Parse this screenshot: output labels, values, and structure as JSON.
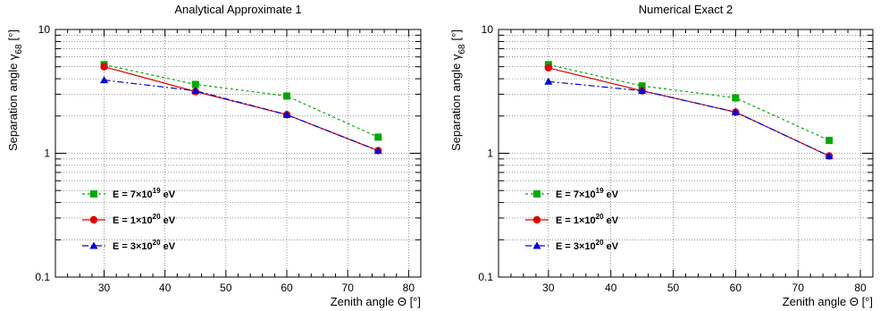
{
  "chart_data": [
    {
      "type": "line",
      "title": "Analytical Approximate 1",
      "xlabel": "Zenith angle Θ [°]",
      "ylabel": "Separation angle γ",
      "ylabel_sub": "68",
      "ylabel_unit": "[°]",
      "xlim": [
        22,
        82
      ],
      "ylim": [
        0.1,
        10
      ],
      "yscale": "log",
      "grid": true,
      "legend_position": "bottom-left",
      "x_ticks": [
        "30",
        "40",
        "50",
        "60",
        "70",
        "80"
      ],
      "y_ticks": [
        "0.1",
        "1",
        "10"
      ],
      "series": [
        {
          "name": "E = 7×10^19 eV",
          "name_base": "E = 7×10",
          "name_exp": "19",
          "name_tail": " eV",
          "color": "#00aa00",
          "marker": "square",
          "line": "dotted",
          "x": [
            30,
            45,
            60,
            75
          ],
          "y": [
            5.2,
            3.6,
            2.9,
            1.35
          ]
        },
        {
          "name": "E = 1×10^20 eV",
          "name_base": "E = 1×10",
          "name_exp": "20",
          "name_tail": " eV",
          "color": "#e00000",
          "marker": "circle",
          "line": "solid",
          "x": [
            30,
            45,
            60,
            75
          ],
          "y": [
            5.0,
            3.15,
            2.05,
            1.05
          ]
        },
        {
          "name": "E = 3×10^20 eV",
          "name_base": "E = 3×10",
          "name_exp": "20",
          "name_tail": " eV",
          "color": "#0000dd",
          "marker": "triangle",
          "line": "dashdot",
          "x": [
            30,
            45,
            60,
            75
          ],
          "y": [
            3.9,
            3.2,
            2.05,
            1.05
          ]
        }
      ]
    },
    {
      "type": "line",
      "title": "Numerical Exact 2",
      "xlabel": "Zenith angle Θ [°]",
      "ylabel": "Separation angle γ",
      "ylabel_sub": "68",
      "ylabel_unit": "[°]",
      "xlim": [
        22,
        82
      ],
      "ylim": [
        0.1,
        10
      ],
      "yscale": "log",
      "grid": true,
      "legend_position": "bottom-left",
      "x_ticks": [
        "30",
        "40",
        "50",
        "60",
        "70",
        "80"
      ],
      "y_ticks": [
        "0.1",
        "1",
        "10"
      ],
      "series": [
        {
          "name": "E = 7×10^19 eV",
          "name_base": "E = 7×10",
          "name_exp": "19",
          "name_tail": " eV",
          "color": "#00aa00",
          "marker": "square",
          "line": "dotted",
          "x": [
            30,
            45,
            60,
            75
          ],
          "y": [
            5.2,
            3.5,
            2.8,
            1.27
          ]
        },
        {
          "name": "E = 1×10^20 eV",
          "name_base": "E = 1×10",
          "name_exp": "20",
          "name_tail": " eV",
          "color": "#e00000",
          "marker": "circle",
          "line": "solid",
          "x": [
            30,
            45,
            60,
            75
          ],
          "y": [
            4.9,
            3.2,
            2.15,
            0.95
          ]
        },
        {
          "name": "E = 3×10^20 eV",
          "name_base": "E = 3×10",
          "name_exp": "20",
          "name_tail": " eV",
          "color": "#0000dd",
          "marker": "triangle",
          "line": "dashdot",
          "x": [
            30,
            45,
            60,
            75
          ],
          "y": [
            3.8,
            3.2,
            2.15,
            0.95
          ]
        }
      ]
    }
  ]
}
